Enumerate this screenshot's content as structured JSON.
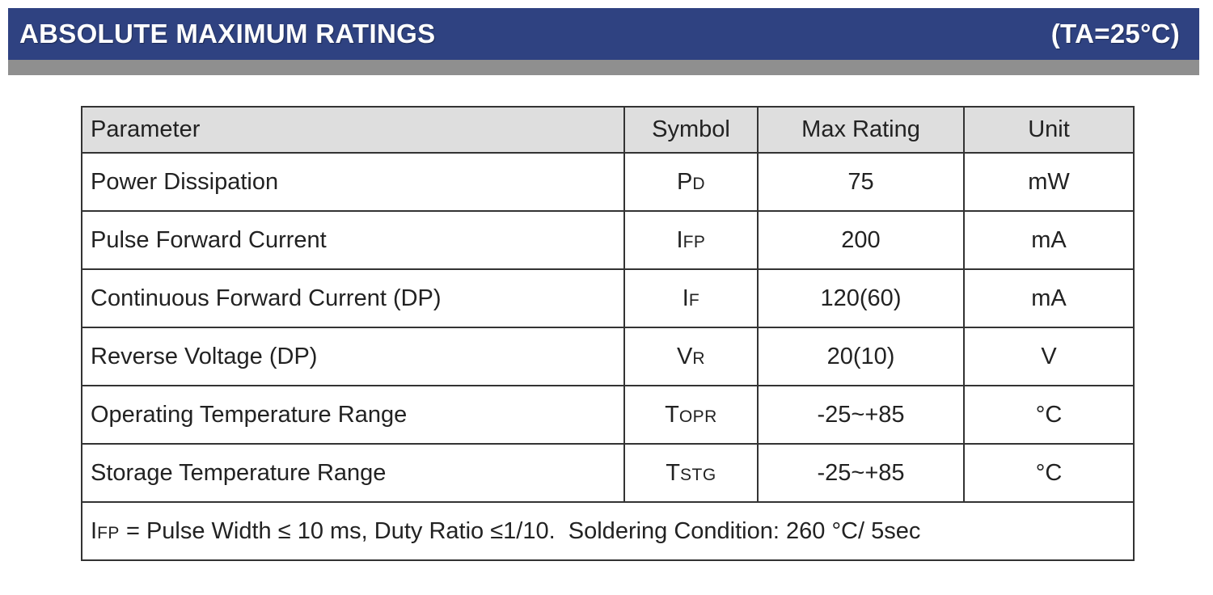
{
  "header": {
    "title": "ABSOLUTE MAXIMUM RATINGS",
    "condition": "(TA=25°C)"
  },
  "table": {
    "columns": [
      "Parameter",
      "Symbol",
      "Max Rating",
      "Unit"
    ],
    "rows": [
      {
        "parameter": "Power Dissipation",
        "symbol_main": "P",
        "symbol_sub": "D",
        "max_rating": "75",
        "unit": "mW"
      },
      {
        "parameter": "Pulse Forward Current",
        "symbol_main": "I",
        "symbol_sub": "FP",
        "max_rating": "200",
        "unit": "mA"
      },
      {
        "parameter": "Continuous Forward Current (DP)",
        "symbol_main": "I",
        "symbol_sub": "F",
        "max_rating": "120(60)",
        "unit": "mA"
      },
      {
        "parameter": "Reverse Voltage (DP)",
        "symbol_main": "V",
        "symbol_sub": "R",
        "max_rating": "20(10)",
        "unit": "V"
      },
      {
        "parameter": "Operating Temperature Range",
        "symbol_main": "T",
        "symbol_sub": "OPR",
        "max_rating": "-25~+85",
        "unit": "°C"
      },
      {
        "parameter": "Storage Temperature Range",
        "symbol_main": "T",
        "symbol_sub": "STG",
        "max_rating": "-25~+85",
        "unit": "°C"
      }
    ],
    "note": {
      "symbol_main": "I",
      "symbol_sub": "FP",
      "text": " = Pulse Width ≤ 10 ms, Duty Ratio ≤1/10.  Soldering Condition: 260 °C/ 5sec"
    }
  },
  "colors": {
    "banner": "#2f4281",
    "banner_strip": "#8f8f8f",
    "header_row": "#dedede"
  }
}
